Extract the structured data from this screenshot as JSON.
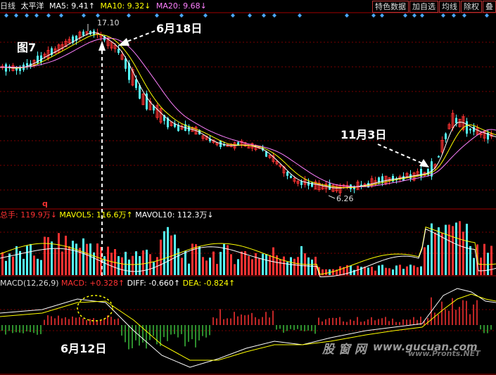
{
  "header": {
    "period": "日线",
    "stock_name": "太平洋",
    "ma5": "MA5: 9.41↑",
    "ma10": "MA10: 9.32↓",
    "ma20": "MA20: 9.68↓"
  },
  "toolbar": [
    "特色数据",
    "加自选",
    "均线",
    "除权",
    "叠"
  ],
  "price_panel": {
    "high_label": "17.10",
    "low_label": "6.26"
  },
  "volume_panel": {
    "total": "总手: 119.9万↓",
    "mavol5": "MAVOL5: 116.6万↑",
    "mavol10": "MAVOL10: 112.3万↓",
    "marker": "q"
  },
  "macd_panel": {
    "name": "MACD(12,26,9)",
    "macd": "MACD: +0.328↑",
    "diff": "DIFF: -0.660↑",
    "dea": "DEA: -0.824↑"
  },
  "annotations": {
    "figure": "图7",
    "june18": "6月18日",
    "nov3": "11月3日",
    "june12": "6月12日"
  },
  "watermark": {
    "line1": "股 窗 网",
    "line2": "www.gucuan.com",
    "line3": "www.Pronts.NET"
  },
  "colors": {
    "up": "#ff3232",
    "down": "#54fcfc",
    "ma5": "#ffffff",
    "ma10": "#ffff00",
    "ma20": "#ff80ff",
    "grid": "#7a0000",
    "marker": "#4aa8ff"
  }
}
